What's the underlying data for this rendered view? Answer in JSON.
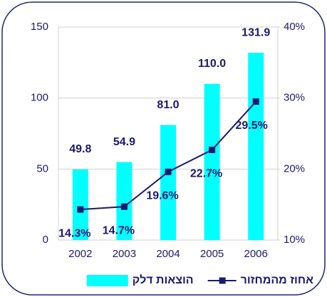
{
  "chart_data": {
    "type": "bar",
    "categories": [
      "2002",
      "2003",
      "2004",
      "2005",
      "2006"
    ],
    "series": [
      {
        "name": "הוצאות דלק",
        "type": "bar",
        "axis": "y",
        "color": "#00ffff",
        "values": [
          49.8,
          54.9,
          81.0,
          110.0,
          131.9
        ],
        "value_labels": [
          "49.8",
          "54.9",
          "81.0",
          "110.0",
          "131.9"
        ]
      },
      {
        "name": "אחוז מהמחזור",
        "type": "line",
        "axis": "y2",
        "color": "#1b1a6b",
        "values": [
          14.3,
          14.7,
          19.6,
          22.7,
          29.5
        ],
        "value_labels": [
          "14.3%",
          "14.7%",
          "19.6%",
          "22.7%",
          "29.5%"
        ]
      }
    ],
    "ylim": [
      0,
      150
    ],
    "yticks": [
      0,
      50,
      100,
      150
    ],
    "y2lim": [
      10,
      40
    ],
    "y2ticks": [
      {
        "value": 10,
        "label": "10%"
      },
      {
        "value": 20,
        "label": "20%"
      },
      {
        "value": 30,
        "label": "30%"
      },
      {
        "value": 40,
        "label": "40%"
      }
    ],
    "grid": true,
    "legend": "bottom"
  }
}
